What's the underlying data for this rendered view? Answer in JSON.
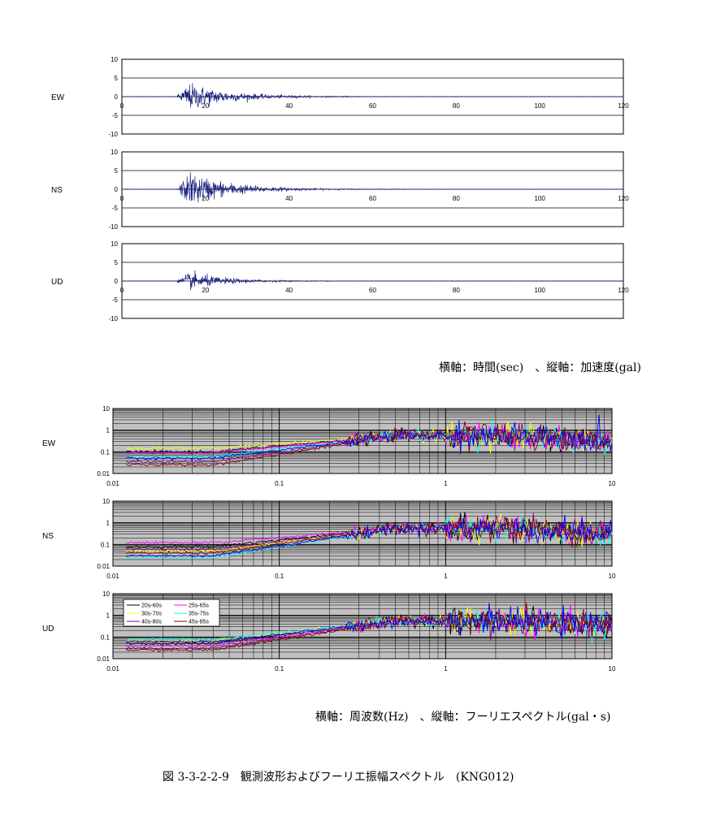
{
  "captions": {
    "time_axes": "横軸：時間(sec)　、縦軸：加速度(gal)",
    "freq_axes": "横軸：周波数(Hz)　、縦軸：フーリエスペクトル(gal・s)",
    "figure_title": "図 3-3-2-2-9　観測波形およびフーリエ振幅スペクトル　(KNG012)"
  },
  "colors": {
    "waveform": "#1a1f80",
    "grid": "#000000",
    "spectrum_bg": "#c0c0c0",
    "spectrum_grid": "#000000"
  },
  "chart_data": [
    {
      "type": "line",
      "component": "EW",
      "series": [
        {
          "name": "",
          "color": "#1a1f80",
          "peak_abs": 6.6,
          "onset_s": 13,
          "decay_s": 6
        }
      ],
      "xlim": [
        0,
        120
      ],
      "ylim": [
        -10,
        10
      ],
      "xticks": [
        "0",
        "20",
        "40",
        "60",
        "80",
        "100",
        "120"
      ],
      "yticks": [
        "10",
        "5",
        "0",
        "-5",
        "-10"
      ],
      "grid": true
    },
    {
      "type": "line",
      "component": "NS",
      "series": [
        {
          "name": "",
          "color": "#1a1f80",
          "peak_abs": 8.2,
          "onset_s": 13,
          "decay_s": 6
        }
      ],
      "xlim": [
        0,
        120
      ],
      "ylim": [
        -10,
        10
      ],
      "xticks": [
        "0",
        "20",
        "40",
        "60",
        "80",
        "100",
        "120"
      ],
      "yticks": [
        "10",
        "5",
        "0",
        "-5",
        "-10"
      ],
      "grid": true
    },
    {
      "type": "line",
      "component": "UD",
      "series": [
        {
          "name": "",
          "color": "#1a1f80",
          "peak_abs": 4.2,
          "onset_s": 13,
          "decay_s": 5
        }
      ],
      "xlim": [
        0,
        120
      ],
      "ylim": [
        -10,
        10
      ],
      "xticks": [
        "0",
        "20",
        "40",
        "60",
        "80",
        "100",
        "120"
      ],
      "yticks": [
        "10",
        "5",
        "0",
        "-5",
        "-10"
      ],
      "grid": true
    },
    {
      "type": "line",
      "component": "EW",
      "xscale": "log",
      "yscale": "log",
      "xlim": [
        0.01,
        10
      ],
      "ylim": [
        0.01,
        10
      ],
      "xticks": [
        "0.01",
        "0.1",
        "1",
        "10"
      ],
      "yticks": [
        "10",
        "1",
        "0.1",
        "0.01"
      ],
      "grid": true,
      "series": [
        {
          "name": "",
          "color": "#000000",
          "low_level": 0.1
        },
        {
          "name": "",
          "color": "#ff00ff",
          "low_level": 0.09
        },
        {
          "name": "",
          "color": "#ffff00",
          "low_level": 0.15
        },
        {
          "name": "",
          "color": "#00ffff",
          "low_level": 0.06
        },
        {
          "name": "",
          "color": "#800080",
          "low_level": 0.035
        },
        {
          "name": "",
          "color": "#800000",
          "low_level": 0.025
        },
        {
          "name": "",
          "color": "#0000ff",
          "low_level": 0.05
        }
      ]
    },
    {
      "type": "line",
      "component": "NS",
      "xscale": "log",
      "yscale": "log",
      "xlim": [
        0.01,
        10
      ],
      "ylim": [
        0.01,
        10
      ],
      "xticks": [
        "0.01",
        "0.1",
        "1",
        "10"
      ],
      "yticks": [
        "10",
        "1",
        "0.1",
        "0.01"
      ],
      "grid": true,
      "series": [
        {
          "name": "",
          "color": "#000000",
          "low_level": 0.08
        },
        {
          "name": "",
          "color": "#ff00ff",
          "low_level": 0.12
        },
        {
          "name": "",
          "color": "#ffff00",
          "low_level": 0.05
        },
        {
          "name": "",
          "color": "#00ffff",
          "low_level": 0.025
        },
        {
          "name": "",
          "color": "#800080",
          "low_level": 0.06
        },
        {
          "name": "",
          "color": "#800000",
          "low_level": 0.04
        },
        {
          "name": "",
          "color": "#0000ff",
          "low_level": 0.03
        }
      ]
    },
    {
      "type": "line",
      "component": "UD",
      "xscale": "log",
      "yscale": "log",
      "xlim": [
        0.01,
        10
      ],
      "ylim": [
        0.01,
        10
      ],
      "xticks": [
        "0.01",
        "0.1",
        "1",
        "10"
      ],
      "yticks": [
        "10",
        "1",
        "0.1",
        "0.01"
      ],
      "grid": true,
      "legend": "top-left",
      "series": [
        {
          "name": "20s-60s",
          "color": "#000000",
          "low_level": 0.05
        },
        {
          "name": "25s-65s",
          "color": "#ff00ff",
          "low_level": 0.04
        },
        {
          "name": "30s-70s",
          "color": "#ffff00",
          "low_level": 0.07
        },
        {
          "name": "35s-75s",
          "color": "#00ffff",
          "low_level": 0.08
        },
        {
          "name": "40s-80s",
          "color": "#800080",
          "low_level": 0.03
        },
        {
          "name": "45s-85s",
          "color": "#800000",
          "low_level": 0.025
        },
        {
          "name": "",
          "color": "#0000ff",
          "low_level": 0.06
        }
      ]
    }
  ]
}
